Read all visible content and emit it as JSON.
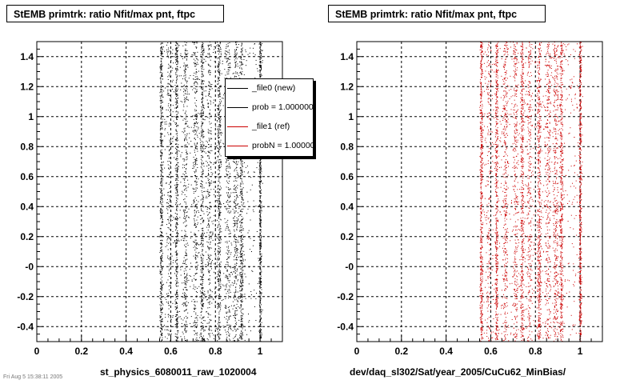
{
  "chart_data": [
    {
      "type": "scatter",
      "title": "StEMB primtrk: ratio Nfit/max pnt, ftpc",
      "xlabel": "st_physics_6080011_raw_1020004",
      "ylabel": "",
      "xlim": [
        0,
        1.1
      ],
      "ylim": [
        -0.5,
        1.5
      ],
      "xticks": [
        0,
        0.2,
        0.4,
        0.6,
        0.8,
        1
      ],
      "xtick_labels": [
        "0",
        "0.2",
        "0.4",
        "0.6",
        "0.8",
        "1"
      ],
      "yticks": [
        -0.4,
        -0.2,
        0,
        0.2,
        0.4,
        0.6,
        0.8,
        1,
        1.2,
        1.4
      ],
      "ytick_labels": [
        "-0.4",
        "-0.2",
        "-0",
        "0.2",
        "0.4",
        "0.6",
        "0.8",
        "1",
        "1.2",
        "1.4"
      ],
      "grid": true,
      "color": "#000000",
      "bands": [
        {
          "x": 0.556,
          "width": 0.012,
          "density": 1.0
        },
        {
          "x": 0.59,
          "width": 0.02,
          "density": 0.3
        },
        {
          "x": 0.625,
          "width": 0.012,
          "density": 0.9
        },
        {
          "x": 0.664,
          "width": 0.02,
          "density": 0.6
        },
        {
          "x": 0.71,
          "width": 0.02,
          "density": 0.55
        },
        {
          "x": 0.74,
          "width": 0.014,
          "density": 0.8
        },
        {
          "x": 0.772,
          "width": 0.02,
          "density": 0.5
        },
        {
          "x": 0.815,
          "width": 0.016,
          "density": 0.95
        },
        {
          "x": 0.855,
          "width": 0.024,
          "density": 0.6
        },
        {
          "x": 0.89,
          "width": 0.024,
          "density": 0.7
        },
        {
          "x": 0.915,
          "width": 0.014,
          "density": 0.9
        },
        {
          "x": 1.0,
          "width": 0.01,
          "density": 1.0
        }
      ],
      "legend": {
        "placement": "top-right",
        "entries": [
          {
            "label": "_file0 (new)",
            "color": "#000000"
          },
          {
            "label": "prob = 1.000000",
            "color": "#000000"
          },
          {
            "label": "_file1 (ref)",
            "color": "#cc0000"
          },
          {
            "label": "probN = 1.000000",
            "color": "#cc0000"
          }
        ]
      }
    },
    {
      "type": "scatter",
      "title": "StEMB primtrk: ratio Nfit/max pnt, ftpc",
      "xlabel": "dev/daq_sl302/Sat/year_2005/CuCu62_MinBias/",
      "ylabel": "",
      "xlim": [
        0,
        1.1
      ],
      "ylim": [
        -0.5,
        1.5
      ],
      "xticks": [
        0,
        0.2,
        0.4,
        0.6,
        0.8,
        1
      ],
      "xtick_labels": [
        "0",
        "0.2",
        "0.4",
        "0.6",
        "0.8",
        "1"
      ],
      "yticks": [
        -0.4,
        -0.2,
        0,
        0.2,
        0.4,
        0.6,
        0.8,
        1,
        1.2,
        1.4
      ],
      "ytick_labels": [
        "-0.4",
        "-0.2",
        "-0",
        "0.2",
        "0.4",
        "0.6",
        "0.8",
        "1",
        "1.2",
        "1.4"
      ],
      "grid": true,
      "color": "#cc0000",
      "bands": [
        {
          "x": 0.556,
          "width": 0.012,
          "density": 1.0
        },
        {
          "x": 0.59,
          "width": 0.02,
          "density": 0.3
        },
        {
          "x": 0.625,
          "width": 0.012,
          "density": 0.9
        },
        {
          "x": 0.664,
          "width": 0.02,
          "density": 0.6
        },
        {
          "x": 0.71,
          "width": 0.02,
          "density": 0.55
        },
        {
          "x": 0.74,
          "width": 0.014,
          "density": 0.8
        },
        {
          "x": 0.772,
          "width": 0.02,
          "density": 0.5
        },
        {
          "x": 0.815,
          "width": 0.016,
          "density": 0.95
        },
        {
          "x": 0.855,
          "width": 0.024,
          "density": 0.6
        },
        {
          "x": 0.89,
          "width": 0.024,
          "density": 0.7
        },
        {
          "x": 0.915,
          "width": 0.014,
          "density": 0.9
        },
        {
          "x": 1.0,
          "width": 0.01,
          "density": 1.0
        }
      ]
    }
  ],
  "footer_text": "Fri Aug 5 15:38:11 2005"
}
